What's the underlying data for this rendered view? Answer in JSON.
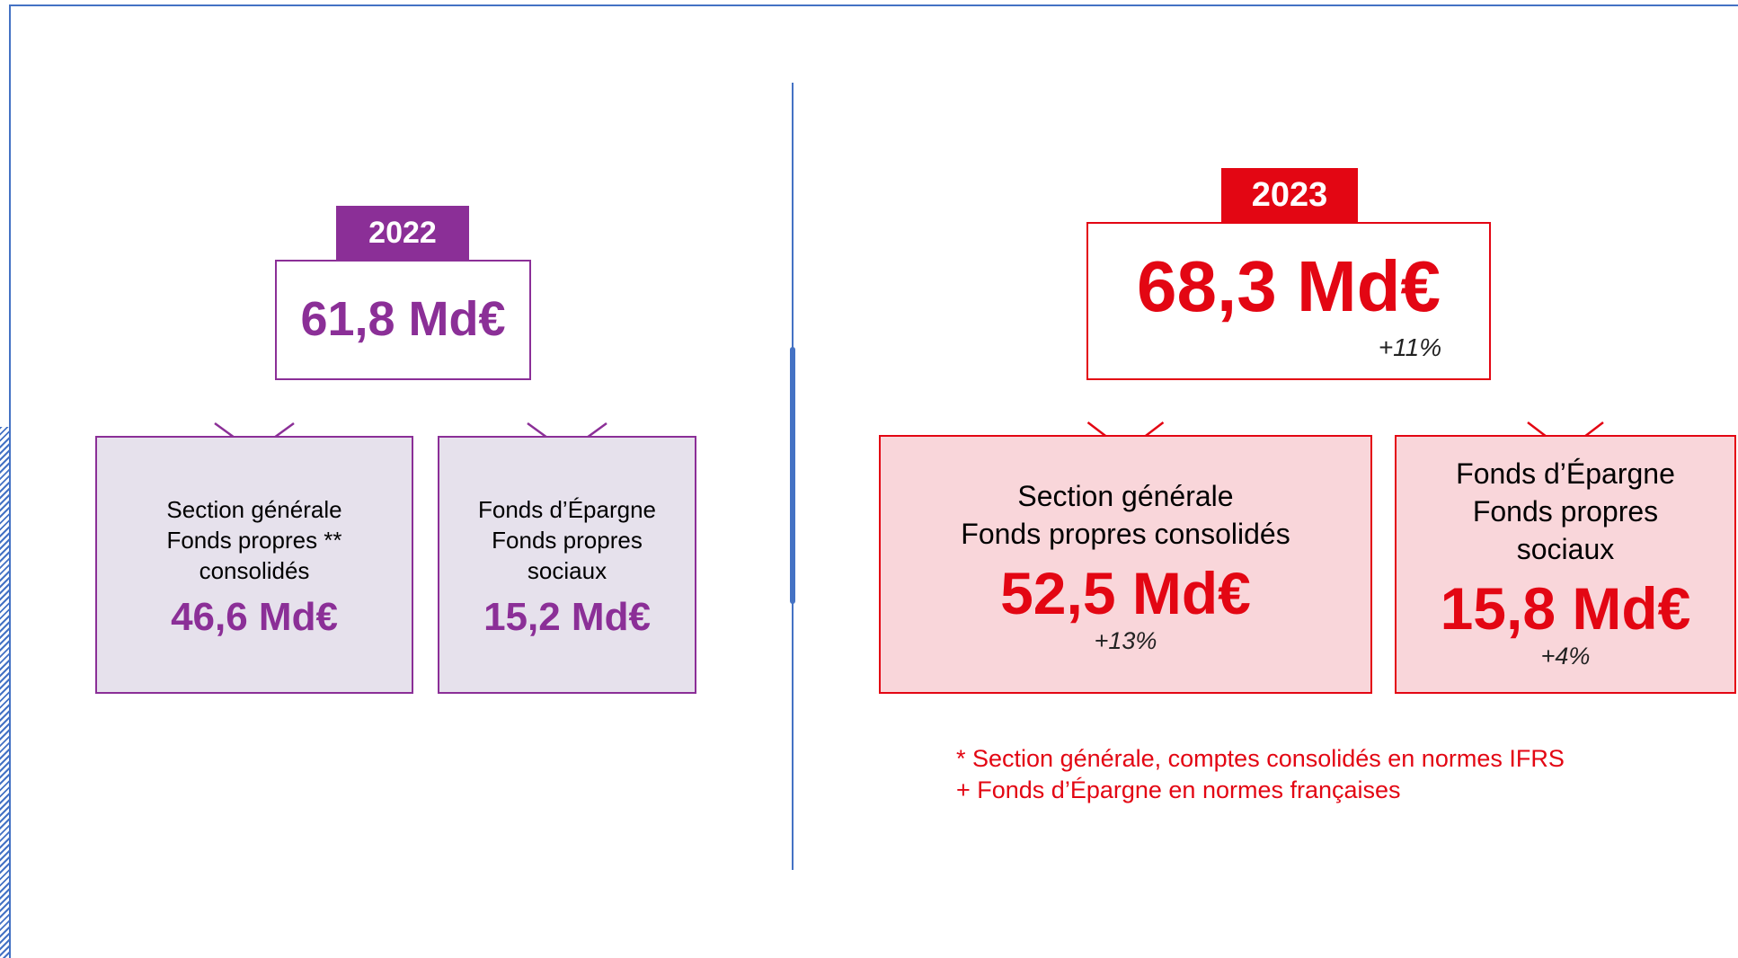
{
  "panels": [
    {
      "year": "2022",
      "total": "61,8 Md€",
      "boxes": [
        {
          "lines": [
            "Section générale",
            "Fonds propres **",
            "consolidés"
          ],
          "value": "46,6 Md€"
        },
        {
          "lines": [
            "Fonds d’Épargne",
            "Fonds propres",
            "sociaux"
          ],
          "value": "15,2 Md€"
        }
      ]
    },
    {
      "year": "2023",
      "total": "68,3 Md€",
      "change": "+11%",
      "boxes": [
        {
          "lines": [
            "Section générale",
            "Fonds propres consolidés"
          ],
          "value": "52,5 Md€",
          "change": "+13%"
        },
        {
          "lines": [
            "Fonds d’Épargne",
            "Fonds propres",
            "sociaux"
          ],
          "value": "15,8 Md€",
          "change": "+4%"
        }
      ]
    }
  ],
  "footnotes": [
    "* Section générale, comptes consolidés en normes IFRS",
    "+ Fonds d’Épargne en normes françaises"
  ]
}
